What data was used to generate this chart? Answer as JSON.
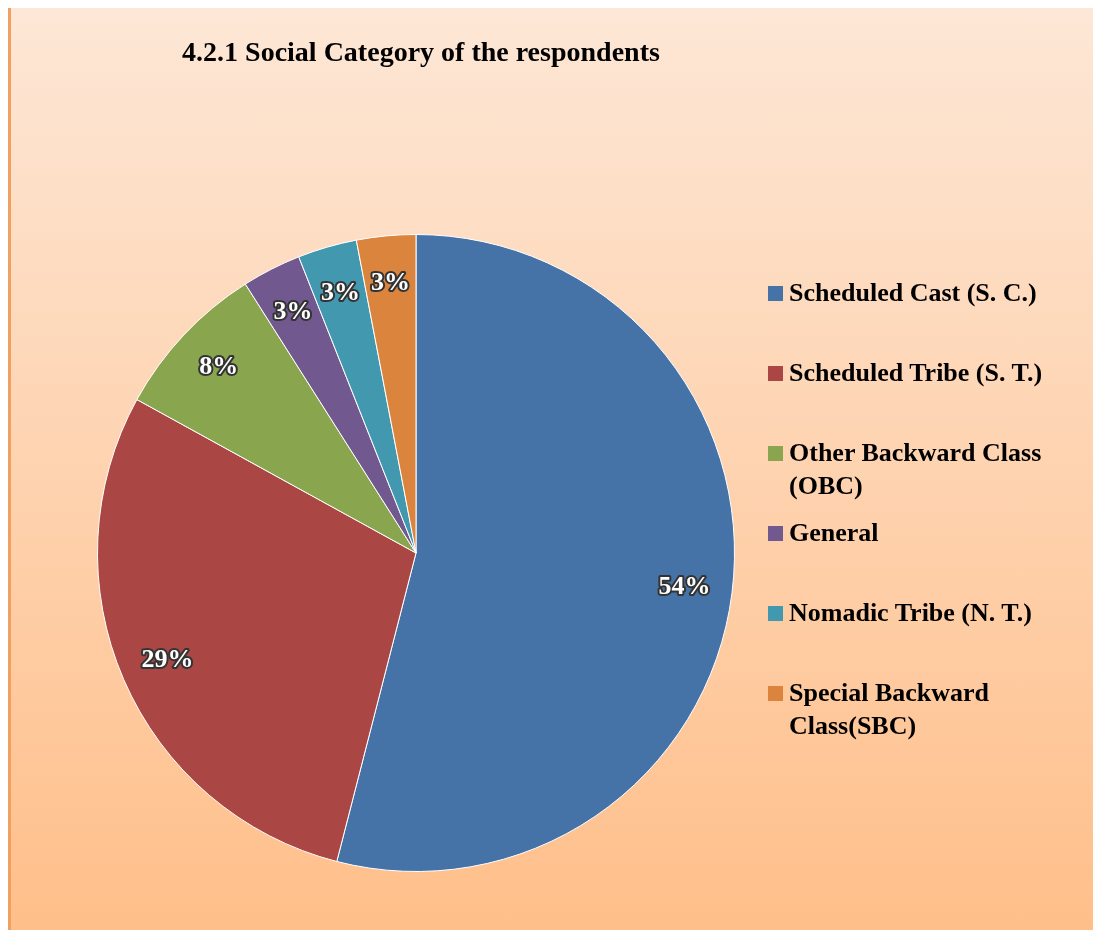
{
  "chart_data": {
    "type": "pie",
    "title": "4.2.1 Social Category of the respondents",
    "categories": [
      "Scheduled Cast (S. C.)",
      "Scheduled Tribe (S. T.)",
      "Other Backward Class (OBC)",
      "General",
      "Nomadic Tribe (N. T.)",
      "Special Backward Class(SBC)"
    ],
    "values": [
      54,
      29,
      8,
      3,
      3,
      3
    ],
    "colors": [
      "#4572a7",
      "#aa4643",
      "#89a54e",
      "#71588f",
      "#4198af",
      "#db843d"
    ],
    "value_labels": [
      "54%",
      "29%",
      "8%",
      "3%",
      "3%",
      "3%"
    ],
    "legend": "right"
  }
}
